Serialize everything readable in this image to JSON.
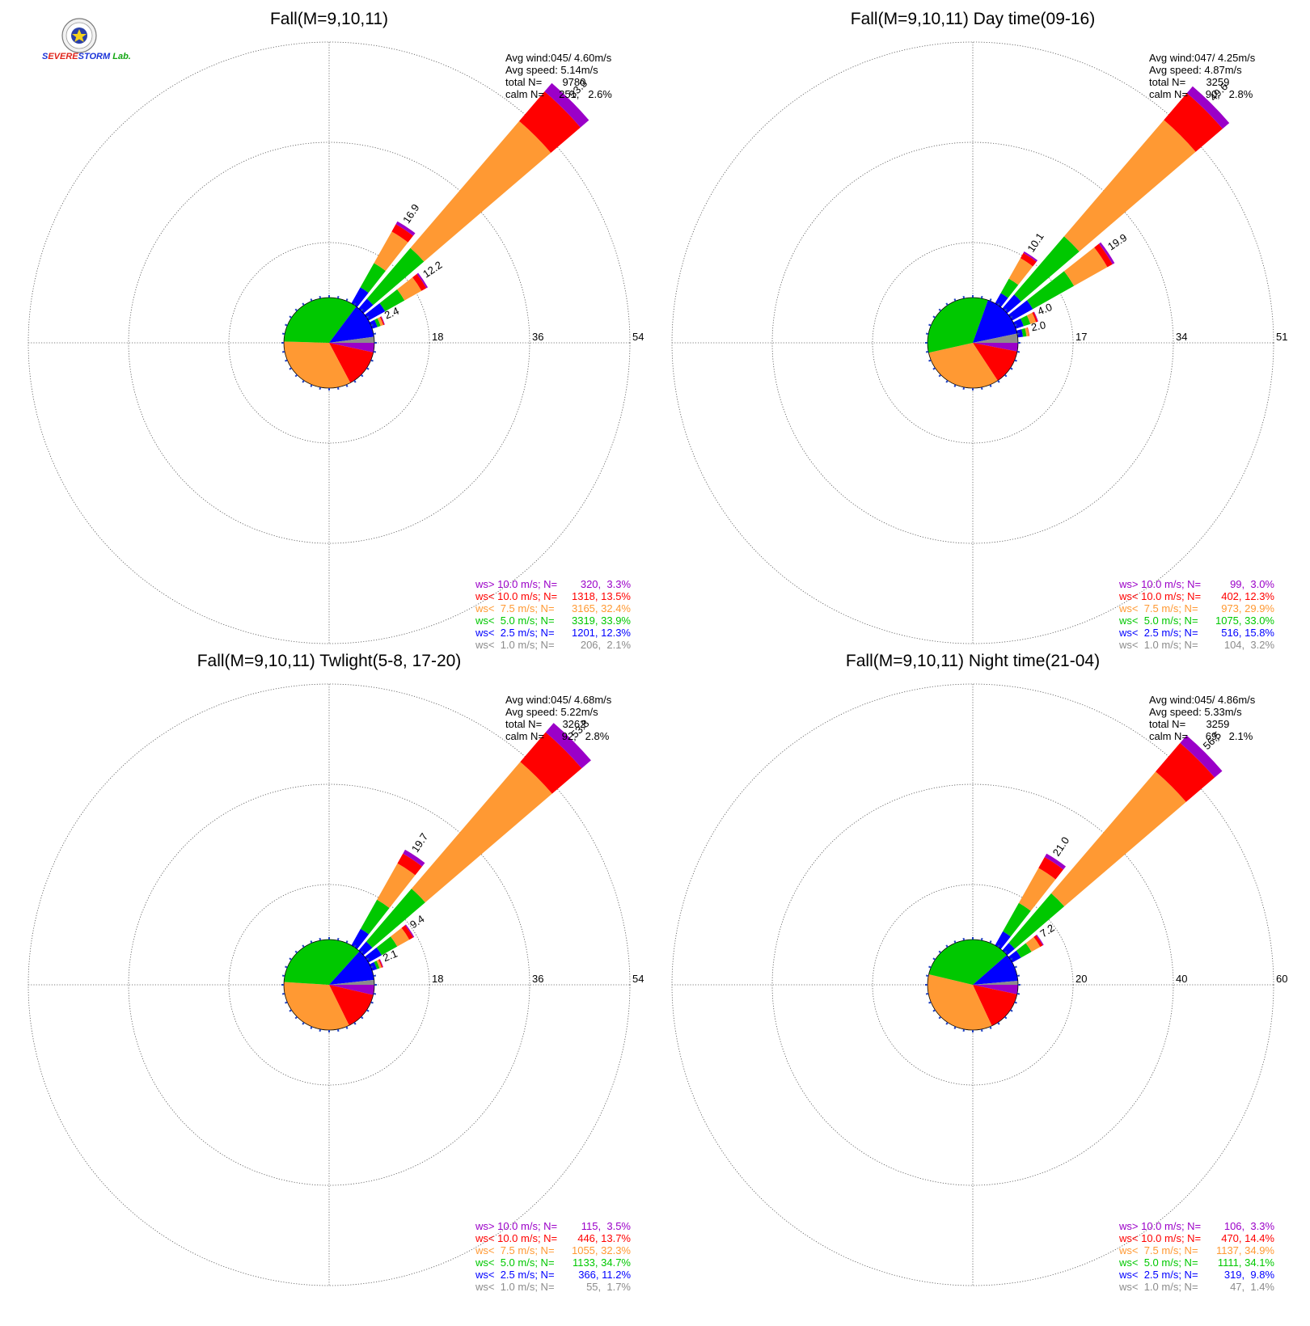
{
  "logo": {
    "name": "severe-storm-lab-logo",
    "text": "Severe Storm Lab."
  },
  "speed_classes": [
    {
      "label": "ws> 10.0 m/s; N=",
      "color": "#9b00c8"
    },
    {
      "label": "ws< 10.0 m/s; N=",
      "color": "#ff0000"
    },
    {
      "label": "ws<  7.5 m/s; N=",
      "color": "#ff9933"
    },
    {
      "label": "ws<  5.0 m/s; N=",
      "color": "#00c800"
    },
    {
      "label": "ws<  2.5 m/s; N=",
      "color": "#0000ff"
    },
    {
      "label": "ws<  1.0 m/s; N=",
      "color": "#8c8c8c"
    }
  ],
  "chart_data": [
    {
      "type": "wind-rose",
      "title": "Fall(M=9,10,11)",
      "stats": {
        "avg_wind": "Avg wind:045/ 4.60m/s",
        "avg_speed": "Avg speed: 5.14m/s",
        "total": "total N=       9780",
        "calm": "calm N=     251,   2.6%"
      },
      "rmax": 54,
      "ring_labels": [
        "18",
        "36",
        "54"
      ],
      "legend_values": [
        "320,  3.3%",
        "1318, 13.5%",
        "3165, 32.4%",
        "3319, 33.9%",
        "1201, 12.3%",
        "206,  2.1%"
      ],
      "speed_pie_percent": [
        3.3,
        13.5,
        32.4,
        33.9,
        12.3,
        2.1
      ],
      "petals": [
        {
          "direction_deg": 45,
          "total": 53.3,
          "label": "53.3",
          "composition": [
            2.0,
            7.0,
            30.0,
            12.0,
            2.3
          ]
        },
        {
          "direction_deg": 33.75,
          "total": 16.9,
          "label": "16.9",
          "composition": [
            0.6,
            1.5,
            6.5,
            5.0,
            3.3
          ]
        },
        {
          "direction_deg": 56.25,
          "total": 12.2,
          "label": "12.2",
          "composition": [
            0.3,
            1.0,
            3.5,
            4.0,
            3.4
          ]
        },
        {
          "direction_deg": 67.5,
          "total": 2.4,
          "label": "2.4",
          "composition": [
            0.1,
            0.2,
            0.5,
            0.6,
            1.0
          ]
        }
      ]
    },
    {
      "type": "wind-rose",
      "title": "Fall(M=9,10,11) Day time(09-16)",
      "stats": {
        "avg_wind": "Avg wind:047/ 4.25m/s",
        "avg_speed": "Avg speed: 4.87m/s",
        "total": "total N=       3259",
        "calm": "calm N=      90,   2.8%"
      },
      "rmax": 51,
      "ring_labels": [
        "17",
        "34",
        "51"
      ],
      "legend_values": [
        "99,  3.0%",
        "402, 12.3%",
        "973, 29.9%",
        "1075, 33.0%",
        "516, 15.8%",
        "104,  3.2%"
      ],
      "speed_pie_percent": [
        3.0,
        12.3,
        29.9,
        33.0,
        15.8,
        3.2
      ],
      "petals": [
        {
          "direction_deg": 45,
          "total": 49.6,
          "label": "49.6",
          "composition": [
            1.5,
            6.0,
            26.0,
            13.0,
            3.1
          ]
        },
        {
          "direction_deg": 56.25,
          "total": 19.9,
          "label": "19.9",
          "composition": [
            0.4,
            1.0,
            6.5,
            8.0,
            4.0
          ]
        },
        {
          "direction_deg": 33.75,
          "total": 10.1,
          "label": "10.1",
          "composition": [
            0.3,
            1.0,
            4.0,
            2.8,
            2.0
          ]
        },
        {
          "direction_deg": 67.5,
          "total": 4.0,
          "label": "4.0",
          "composition": [
            0.1,
            0.3,
            1.0,
            1.2,
            1.4
          ]
        },
        {
          "direction_deg": 78.75,
          "total": 2.0,
          "label": "2.0",
          "composition": [
            0.0,
            0.1,
            0.4,
            0.6,
            0.9
          ]
        }
      ]
    },
    {
      "type": "wind-rose",
      "title": "Fall(M=9,10,11) Twlight(5-8, 17-20)",
      "stats": {
        "avg_wind": "Avg wind:045/ 4.68m/s",
        "avg_speed": "Avg speed: 5.22m/s",
        "total": "total N=       3262",
        "calm": "calm N=      92,   2.8%"
      },
      "rmax": 54,
      "ring_labels": [
        "18",
        "36",
        "54"
      ],
      "legend_values": [
        "115,  3.5%",
        "446, 13.7%",
        "1055, 32.3%",
        "1133, 34.7%",
        "366, 11.2%",
        "55,  1.7%"
      ],
      "speed_pie_percent": [
        3.5,
        13.7,
        32.3,
        34.7,
        11.2,
        1.7
      ],
      "petals": [
        {
          "direction_deg": 45,
          "total": 53.8,
          "label": "53.8",
          "composition": [
            2.2,
            7.0,
            30.0,
            12.5,
            2.1
          ]
        },
        {
          "direction_deg": 33.75,
          "total": 19.7,
          "label": "19.7",
          "composition": [
            0.8,
            2.0,
            7.5,
            6.0,
            3.4
          ]
        },
        {
          "direction_deg": 56.25,
          "total": 9.4,
          "label": "9.4",
          "composition": [
            0.2,
            0.8,
            2.5,
            3.2,
            2.7
          ]
        },
        {
          "direction_deg": 67.5,
          "total": 2.1,
          "label": "2.1",
          "composition": [
            0.1,
            0.2,
            0.4,
            0.5,
            0.9
          ]
        }
      ]
    },
    {
      "type": "wind-rose",
      "title": "Fall(M=9,10,11) Night time(21-04)",
      "stats": {
        "avg_wind": "Avg wind:045/ 4.86m/s",
        "avg_speed": "Avg speed: 5.33m/s",
        "total": "total N=       3259",
        "calm": "calm N=      69,   2.1%"
      },
      "rmax": 60,
      "ring_labels": [
        "20",
        "40",
        "60"
      ],
      "legend_values": [
        "106,  3.3%",
        "470, 14.4%",
        "1137, 34.9%",
        "1111, 34.1%",
        "319,  9.8%",
        "47,  1.4%"
      ],
      "speed_pie_percent": [
        3.3,
        14.4,
        34.9,
        34.1,
        9.8,
        1.4
      ],
      "petals": [
        {
          "direction_deg": 45,
          "total": 56.5,
          "label": "56.5",
          "composition": [
            2.0,
            7.5,
            32.0,
            13.0,
            2.0
          ]
        },
        {
          "direction_deg": 33.75,
          "total": 21.0,
          "label": "21.0",
          "composition": [
            0.8,
            2.5,
            8.0,
            6.5,
            3.2
          ]
        },
        {
          "direction_deg": 56.25,
          "total": 7.2,
          "label": "7.2",
          "composition": [
            0.2,
            0.6,
            2.0,
            2.4,
            2.0
          ]
        }
      ]
    }
  ]
}
